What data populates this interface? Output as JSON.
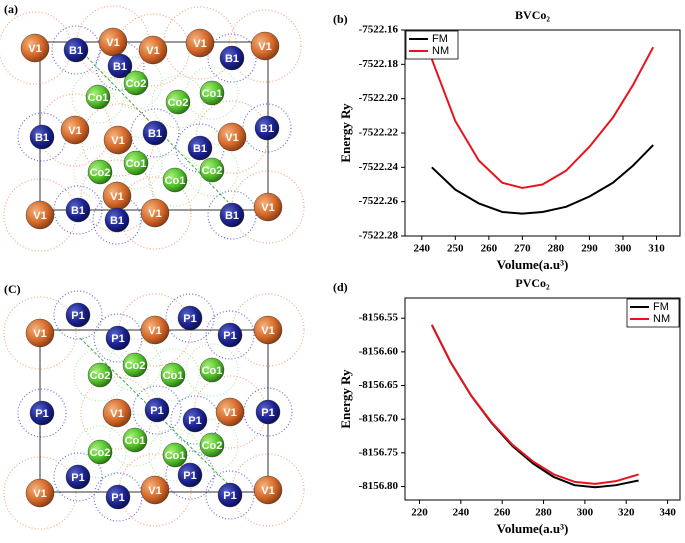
{
  "structures": [
    {
      "label": "(a)",
      "atoms": [
        "V1",
        "B1",
        "V1",
        "B1",
        "V1",
        "V1",
        "B1",
        "V1",
        "Co1",
        "Co2",
        "Co2",
        "Co1",
        "B1",
        "V1",
        "V1",
        "B1",
        "B1",
        "V1",
        "B1",
        "Co1",
        "Co2",
        "Co1",
        "Co2",
        "V1",
        "V1",
        "B1",
        "B1",
        "V1",
        "B1",
        "V1"
      ]
    },
    {
      "label": "(C)",
      "atoms": [
        "V1",
        "P1",
        "P1",
        "V1",
        "P1",
        "P1",
        "V1",
        "Co2",
        "Co2",
        "Co1",
        "Co1",
        "P1",
        "V1",
        "P1",
        "P1",
        "V1",
        "P1",
        "Co1",
        "Co2",
        "Co2",
        "Co1",
        "P1",
        "P1",
        "V1",
        "P1",
        "V1",
        "P1",
        "V1"
      ]
    }
  ],
  "chart_data": [
    {
      "type": "line",
      "panel_label": "(b)",
      "title": "BVCo₂",
      "x_label": "Volume(a.u³)",
      "y_label": "Energy Ry",
      "x": [
        243,
        250,
        257,
        264,
        270,
        276,
        283,
        290,
        297,
        303,
        309
      ],
      "series": [
        {
          "name": "FM",
          "color": "#000000",
          "values": [
            -7522.24,
            -7522.253,
            -7522.261,
            -7522.266,
            -7522.267,
            -7522.266,
            -7522.263,
            -7522.257,
            -7522.249,
            -7522.239,
            -7522.227
          ]
        },
        {
          "name": "NM",
          "color": "#e8141c",
          "values": [
            -7522.177,
            -7522.213,
            -7522.236,
            -7522.249,
            -7522.252,
            -7522.25,
            -7522.242,
            -7522.228,
            -7522.211,
            -7522.192,
            -7522.17
          ]
        }
      ],
      "xlim": [
        235,
        317
      ],
      "xticks": [
        240,
        250,
        260,
        270,
        280,
        290,
        300,
        310
      ],
      "ylim": [
        -7522.28,
        -7522.16
      ],
      "yticks": [
        {
          "value": -7522.28,
          "label": "-7522.28"
        },
        {
          "value": -7522.26,
          "label": "-7522.26"
        },
        {
          "value": -7522.24,
          "label": "-7522.24"
        },
        {
          "value": -7522.22,
          "label": "-7522.22"
        },
        {
          "value": -7522.2,
          "label": "-7522.20"
        },
        {
          "value": -7522.18,
          "label": "-7522.18"
        },
        {
          "value": -7522.16,
          "label": "-7522.16"
        }
      ],
      "legend": "top-left"
    },
    {
      "type": "line",
      "panel_label": "(d)",
      "title": "PVCo₂",
      "x_label": "Volume(a.u³)",
      "y_label": "Energy Ry",
      "x": [
        226,
        235,
        245,
        255,
        265,
        275,
        285,
        295,
        305,
        315,
        326
      ],
      "series": [
        {
          "name": "FM",
          "color": "#000000",
          "values": [
            -8156.56,
            -8156.615,
            -8156.665,
            -8156.706,
            -8156.74,
            -8156.766,
            -8156.786,
            -8156.798,
            -8156.801,
            -8156.798,
            -8156.791
          ]
        },
        {
          "name": "NM",
          "color": "#e8141c",
          "values": [
            -8156.56,
            -8156.615,
            -8156.665,
            -8156.705,
            -8156.738,
            -8156.763,
            -8156.782,
            -8156.793,
            -8156.796,
            -8156.792,
            -8156.782
          ]
        }
      ],
      "xlim": [
        213,
        346
      ],
      "xticks": [
        220,
        240,
        260,
        280,
        300,
        320,
        340
      ],
      "ylim": [
        -8156.82,
        -8156.52
      ],
      "yticks": [
        {
          "value": -8156.8,
          "label": "-8156.80"
        },
        {
          "value": -8156.75,
          "label": "-8156.75"
        },
        {
          "value": -8156.7,
          "label": "-8156.70"
        },
        {
          "value": -8156.65,
          "label": "-8156.65"
        },
        {
          "value": -8156.6,
          "label": "-8156.60"
        },
        {
          "value": -8156.55,
          "label": "-8156.55"
        }
      ],
      "legend": "top-right"
    }
  ]
}
